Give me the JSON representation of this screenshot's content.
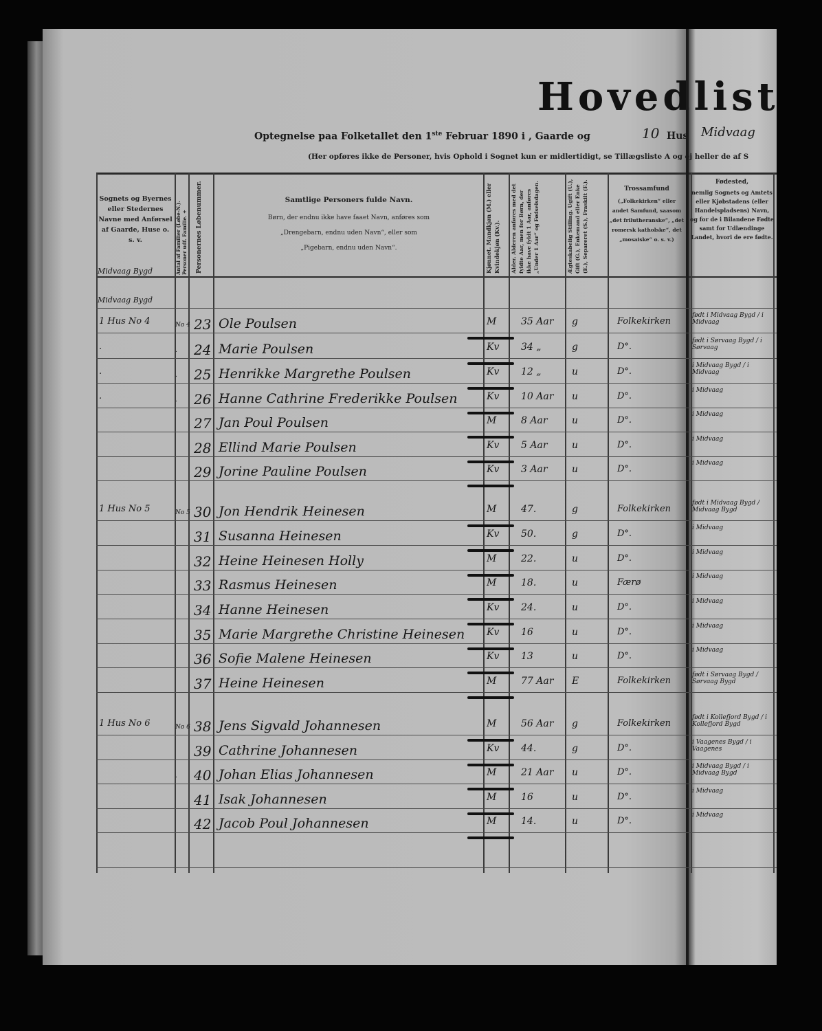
{
  "header": {
    "title": "Hovedlist",
    "subtitle_prefix": "Optegnelse paa Folketallet den 1",
    "subtitle_sup": "ste",
    "subtitle_mid": " Februar 1890 i   ,   Gaarde og",
    "houses_count": "10",
    "subtitle_hus": "Hus",
    "place": "Midvaag",
    "note": "(Her opføres ikke de Personer, hvis Ophold i Sognet kun er midlertidigt, se Tillægsliste A og ej heller de af S"
  },
  "columns": {
    "place": "Sognets og Byernes eller Stedernes Navne med Anførsel af Gaarde, Huse o. s. v.",
    "families": "Antal af Familier (Løbe-N.). Personer udf. Familie. +",
    "person_no": "Personernes Løbenummer.",
    "name_title": "Samtlige Personers fulde Navn.",
    "name_note_1": "Børn, der endnu ikke have faaet Navn, anføres som",
    "name_note_2": "„Drengebarn, endnu uden Navn“, eller som",
    "name_note_3": "„Pigebarn, endnu uden Navn“.",
    "sex": "Kjønnet. Mandkjøn (M.) eller Kvindekjøn (Kv.).",
    "age": "Alder. Alderen anføres med det fyldte Aar, men for Børn, der ikke have fyldt 1 Aar, anføres „Under 1 Aar“ og Fødselsdagen.",
    "marital": "Ægteskabelig Stilling. Ugift (U.), Gift (G.), Enkemand eller Enke (E.), Separeret (S.), Fraskilt (F.).",
    "religion_title": "Trossamfund",
    "religion_note": "(„Folkekirken“ eller andet Samfund, saasom „det frilutheranske“, „det romersk katholske“, det „mosaiske“ o. s. v.)",
    "birthplace_title": "Fødested,",
    "birthplace_note": "nemlig Sognets og Amtets eller Kjøbstadens (eller Handelspladsens) Navn, og for de i Bilandene Fødte samt for Udlændinge Landet, hvori de ere fødte."
  },
  "section_labels": [
    "Midvaag Bygd",
    "Midvaag Bygd"
  ],
  "rows": [
    {
      "place": "1 Hus No 4",
      "family": "No 4",
      "no": "23",
      "name": "Ole Poulsen",
      "sex": "M",
      "age": "35 Aar",
      "marital": "g",
      "religion": "Folkekirken",
      "birthplace": "født i Midvaag Bygd / i Midvaag"
    },
    {
      "place": ".",
      "family": ".",
      "no": "24",
      "name": "Marie Poulsen",
      "sex": "Kv",
      "age": "34 „",
      "marital": "g",
      "religion": "D°.",
      "birthplace": "født i Sørvaag Bygd / i Sørvaag"
    },
    {
      "place": ".",
      "family": ".",
      "no": "25",
      "name": "Henrikke Margrethe Poulsen",
      "sex": "Kv",
      "age": "12 „",
      "marital": "u",
      "religion": "D°.",
      "birthplace": "i Midvaag Bygd / i Midvaag"
    },
    {
      "place": ".",
      "family": ".",
      "no": "26",
      "name": "Hanne Cathrine Frederikke Poulsen",
      "sex": "Kv",
      "age": "10 Aar",
      "marital": "u",
      "religion": "D°.",
      "birthplace": "i Midvaag"
    },
    {
      "place": "",
      "family": "",
      "no": "27",
      "name": "Jan Poul Poulsen",
      "sex": "M",
      "age": "8 Aar",
      "marital": "u",
      "religion": "D°.",
      "birthplace": "i Midvaag"
    },
    {
      "place": "",
      "family": "",
      "no": "28",
      "name": "Ellind Marie Poulsen",
      "sex": "Kv",
      "age": "5 Aar",
      "marital": "u",
      "religion": "D°.",
      "birthplace": "i Midvaag"
    },
    {
      "place": "",
      "family": "",
      "no": "29",
      "name": "Jorine Pauline Poulsen",
      "sex": "Kv",
      "age": "3 Aar",
      "marital": "u",
      "religion": "D°.",
      "birthplace": "i Midvaag"
    },
    {
      "place": "1 Hus No 5",
      "family": "No 5",
      "no": "30",
      "name": "Jon Hendrik Heinesen",
      "sex": "M",
      "age": "47.",
      "marital": "g",
      "religion": "Folkekirken",
      "birthplace": "født i Midvaag Bygd / Midvaag Bygd"
    },
    {
      "place": "",
      "family": "",
      "no": "31",
      "name": "Susanna Heinesen",
      "sex": "Kv",
      "age": "50.",
      "marital": "g",
      "religion": "D°.",
      "birthplace": "i Midvaag"
    },
    {
      "place": "",
      "family": "",
      "no": "32",
      "name": "Heine Heinesen Holly",
      "sex": "M",
      "age": "22.",
      "marital": "u",
      "religion": "D°.",
      "birthplace": "i Midvaag"
    },
    {
      "place": "",
      "family": "",
      "no": "33",
      "name": "Rasmus Heinesen",
      "sex": "M",
      "age": "18.",
      "marital": "u",
      "religion": "Færø",
      "birthplace": "i Midvaag"
    },
    {
      "place": "",
      "family": "",
      "no": "34",
      "name": "Hanne Heinesen",
      "sex": "Kv",
      "age": "24.",
      "marital": "u",
      "religion": "D°.",
      "birthplace": "i Midvaag"
    },
    {
      "place": "",
      "family": "",
      "no": "35",
      "name": "Marie Margrethe Christine Heinesen",
      "sex": "Kv",
      "age": "16",
      "marital": "u",
      "religion": "D°.",
      "birthplace": "i Midvaag"
    },
    {
      "place": "",
      "family": "",
      "no": "36",
      "name": "Sofie Malene Heinesen",
      "sex": "Kv",
      "age": "13",
      "marital": "u",
      "religion": "D°.",
      "birthplace": "i Midvaag"
    },
    {
      "place": "",
      "family": "",
      "no": "37",
      "name": "Heine Heinesen",
      "sex": "M",
      "age": "77 Aar",
      "marital": "E",
      "religion": "Folkekirken",
      "birthplace": "født i Sørvaag Bygd / Sørvaag Bygd"
    },
    {
      "place": "1 Hus No 6",
      "family": "No 6",
      "no": "38",
      "name": "Jens Sigvald Johannesen",
      "sex": "M",
      "age": "56 Aar",
      "marital": "g",
      "religion": "Folkekirken",
      "birthplace": "født i Kollefjord Bygd / i Kollefjord Bygd"
    },
    {
      "place": "",
      "family": "",
      "no": "39",
      "name": "Cathrine Johannesen",
      "sex": "Kv",
      "age": "44.",
      "marital": "g",
      "religion": "D°.",
      "birthplace": "i Vaagenes Bygd / i Vaagenes"
    },
    {
      "place": "",
      "family": ".",
      "no": "40",
      "name": "Johan Elias Johannesen",
      "sex": "M",
      "age": "21 Aar",
      "marital": "u",
      "religion": "D°.",
      "birthplace": "i Midvaag Bygd / i Midvaag Bygd"
    },
    {
      "place": "",
      "family": "",
      "no": "41",
      "name": "Isak Johannesen",
      "sex": "M",
      "age": "16",
      "marital": "u",
      "religion": "D°.",
      "birthplace": "i Midvaag"
    },
    {
      "place": "",
      "family": "",
      "no": "42",
      "name": "Jacob Poul Johannesen",
      "sex": "M",
      "age": "14.",
      "marital": "u",
      "religion": "D°.",
      "birthplace": "i Midvaag"
    }
  ]
}
